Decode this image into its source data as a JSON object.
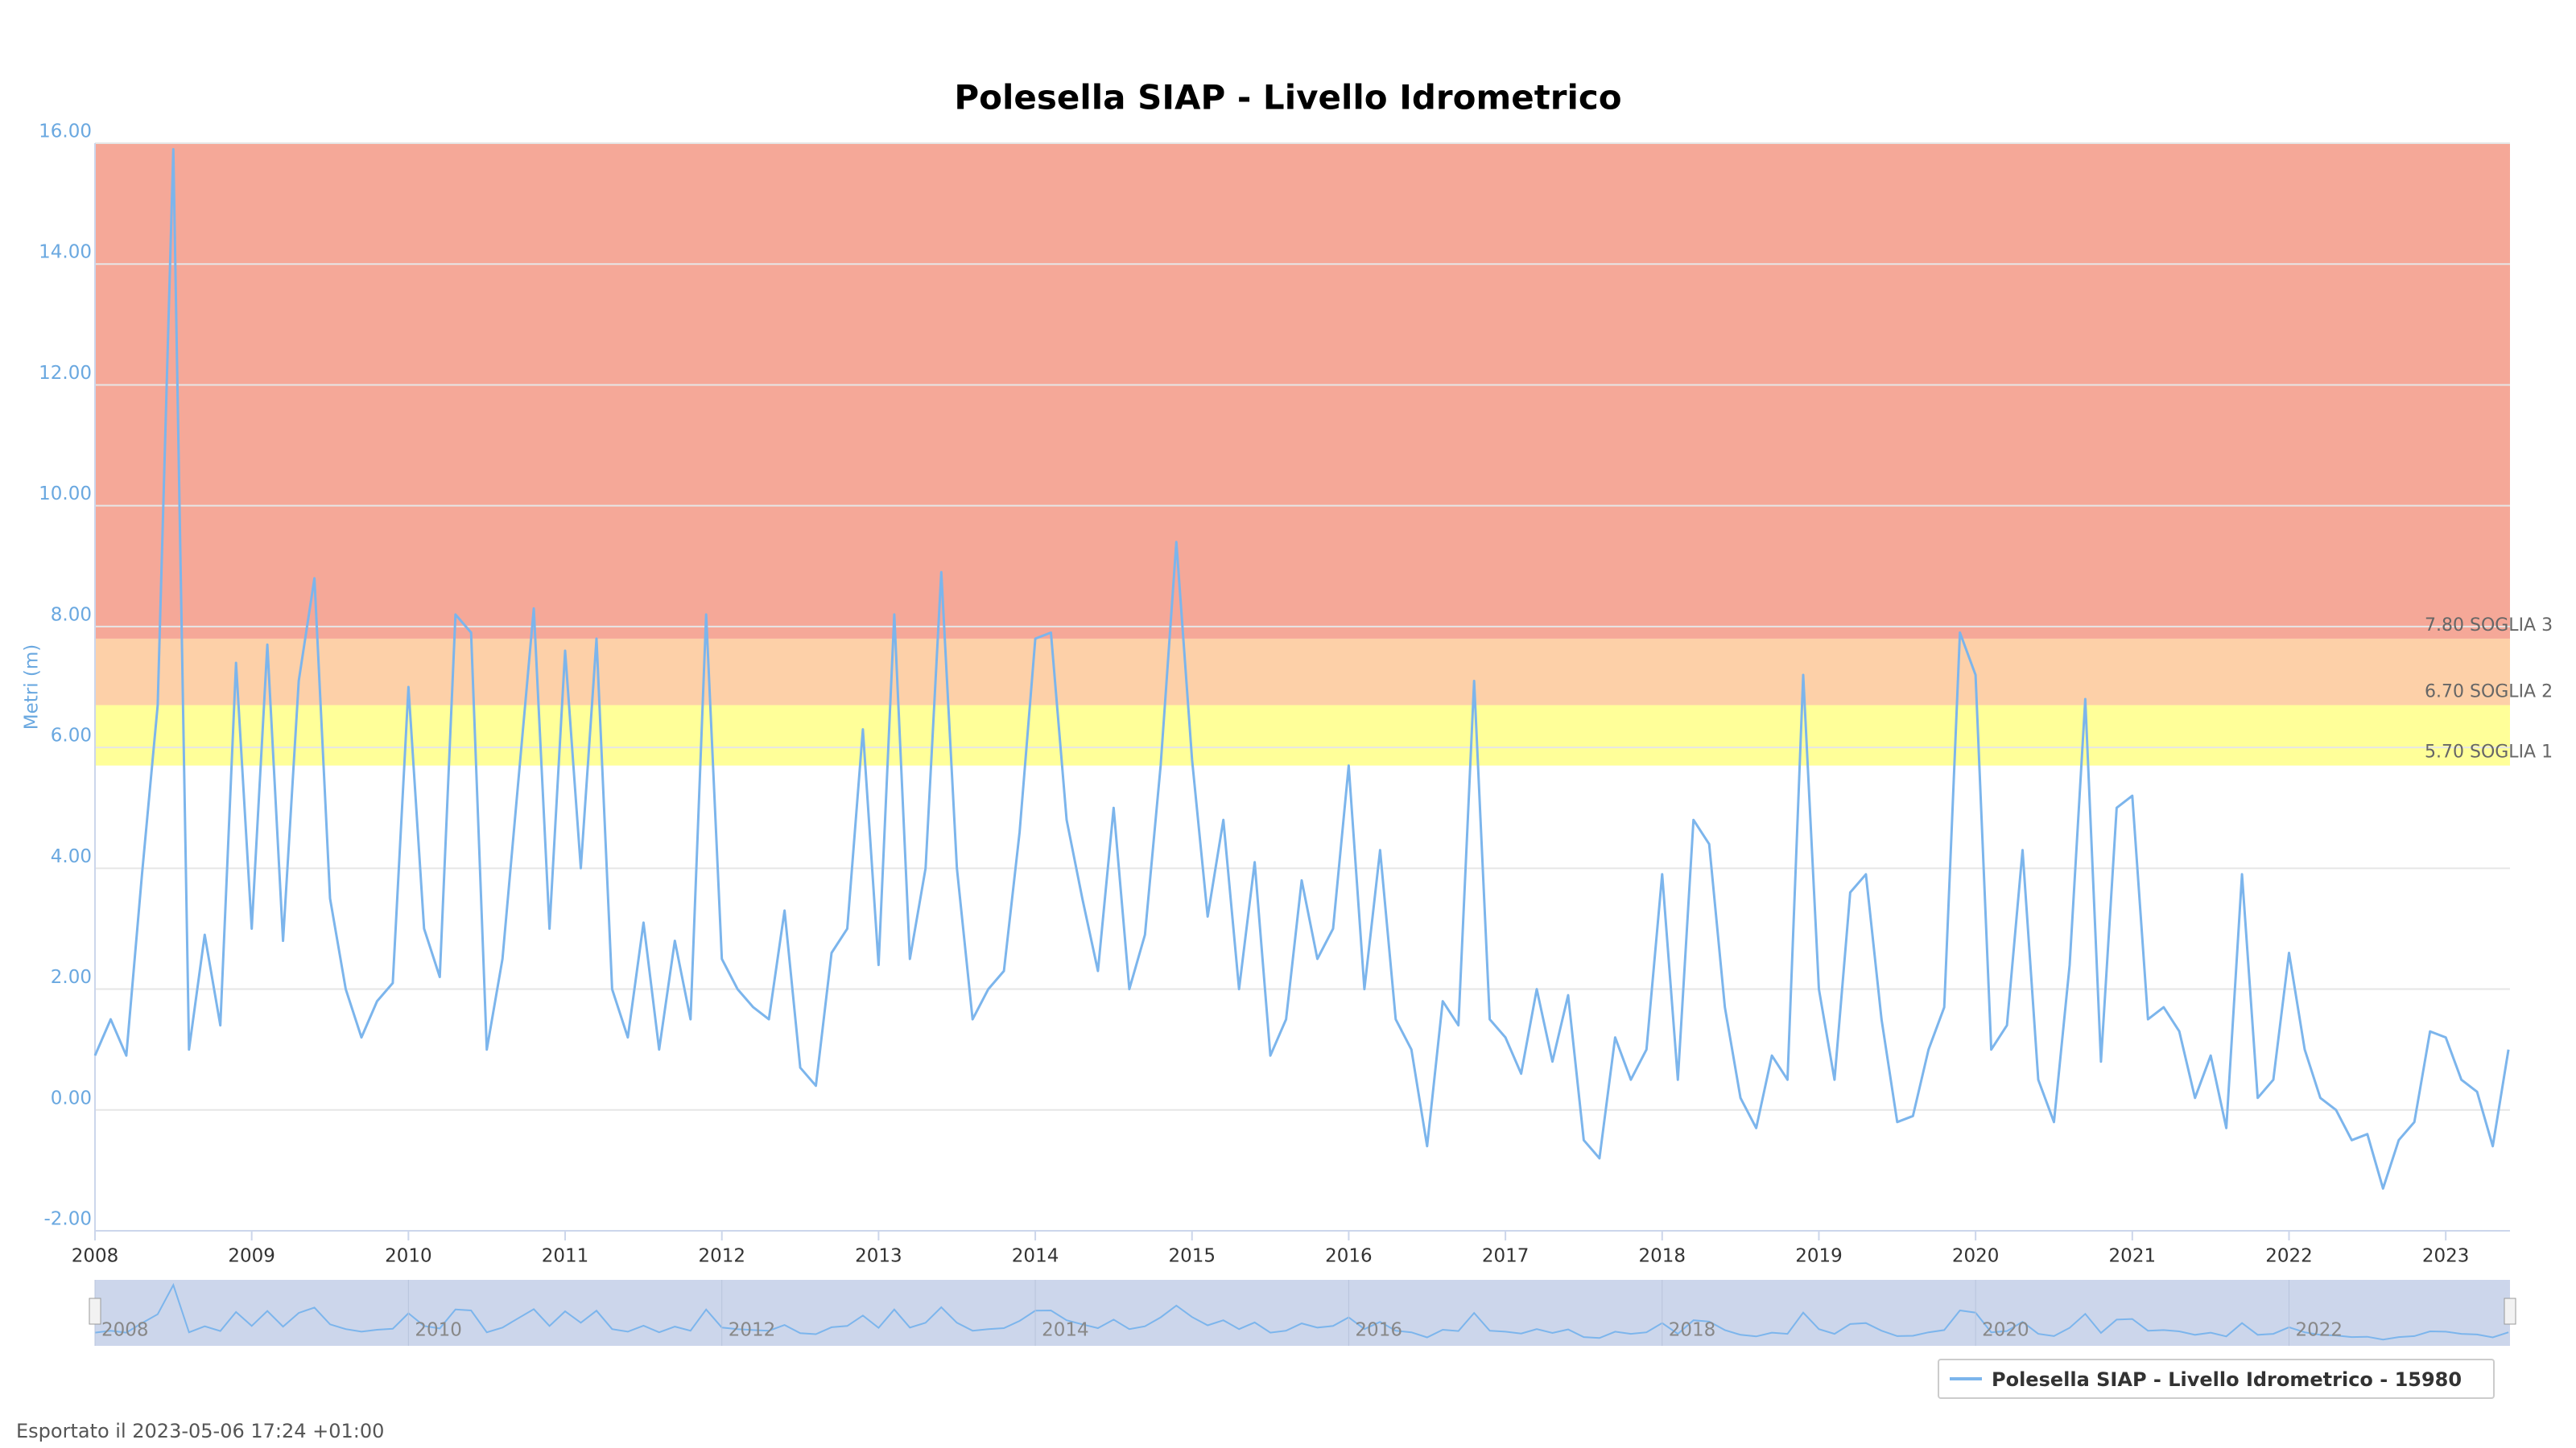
{
  "chart_data": {
    "type": "line",
    "title": "Polesella SIAP - Livello Idrometrico",
    "y_axis_title": "Metri (m)",
    "footer": "Esportato il 2023-05-06 17:24 +01:00",
    "xlim": [
      2008,
      2023.41
    ],
    "xticks": [
      2008,
      2009,
      2010,
      2011,
      2012,
      2013,
      2014,
      2015,
      2016,
      2017,
      2018,
      2019,
      2020,
      2021,
      2022,
      2023
    ],
    "navigator_ticks": [
      2008,
      2010,
      2012,
      2014,
      2016,
      2018,
      2020,
      2022
    ],
    "ylim": [
      -2,
      16
    ],
    "yticks": [
      {
        "value": -2,
        "label": "-2.00"
      },
      {
        "value": 0,
        "label": "0.00"
      },
      {
        "value": 2,
        "label": "2.00"
      },
      {
        "value": 4,
        "label": "4.00"
      },
      {
        "value": 6,
        "label": "6.00"
      },
      {
        "value": 8,
        "label": "8.00"
      },
      {
        "value": 10,
        "label": "10.00"
      },
      {
        "value": 12,
        "label": "12.00"
      },
      {
        "value": 14,
        "label": "14.00"
      },
      {
        "value": 16,
        "label": "16.00"
      }
    ],
    "grid": true,
    "thresholds": [
      {
        "value": 5.7,
        "label": "5.70 SOGLIA 1",
        "color": "#ffff99"
      },
      {
        "value": 6.7,
        "label": "6.70 SOGLIA 2",
        "color": "#fdd0a8"
      },
      {
        "value": 7.8,
        "label": "7.80 SOGLIA 3",
        "color": "#f5a898"
      }
    ],
    "x": [
      2008.0,
      2008.1,
      2008.2,
      2008.3,
      2008.4,
      2008.5,
      2008.6,
      2008.7,
      2008.8,
      2008.9,
      2009.0,
      2009.1,
      2009.2,
      2009.3,
      2009.4,
      2009.5,
      2009.6,
      2009.7,
      2009.8,
      2009.9,
      2010.0,
      2010.1,
      2010.2,
      2010.3,
      2010.4,
      2010.5,
      2010.6,
      2010.7,
      2010.8,
      2010.9,
      2011.0,
      2011.1,
      2011.2,
      2011.3,
      2011.4,
      2011.5,
      2011.6,
      2011.7,
      2011.8,
      2011.9,
      2012.0,
      2012.1,
      2012.2,
      2012.3,
      2012.4,
      2012.5,
      2012.6,
      2012.7,
      2012.8,
      2012.9,
      2013.0,
      2013.1,
      2013.2,
      2013.3,
      2013.4,
      2013.5,
      2013.6,
      2013.7,
      2013.8,
      2013.9,
      2014.0,
      2014.1,
      2014.2,
      2014.3,
      2014.4,
      2014.5,
      2014.6,
      2014.7,
      2014.8,
      2014.9,
      2015.0,
      2015.1,
      2015.2,
      2015.3,
      2015.4,
      2015.5,
      2015.6,
      2015.7,
      2015.8,
      2015.9,
      2016.0,
      2016.1,
      2016.2,
      2016.3,
      2016.4,
      2016.5,
      2016.6,
      2016.7,
      2016.8,
      2016.9,
      2017.0,
      2017.1,
      2017.2,
      2017.3,
      2017.4,
      2017.5,
      2017.6,
      2017.7,
      2017.8,
      2017.9,
      2018.0,
      2018.1,
      2018.2,
      2018.3,
      2018.4,
      2018.5,
      2018.6,
      2018.7,
      2018.8,
      2018.9,
      2019.0,
      2019.1,
      2019.2,
      2019.3,
      2019.4,
      2019.5,
      2019.6,
      2019.7,
      2019.8,
      2019.9,
      2020.0,
      2020.1,
      2020.2,
      2020.3,
      2020.4,
      2020.5,
      2020.6,
      2020.7,
      2020.8,
      2020.9,
      2021.0,
      2021.1,
      2021.2,
      2021.3,
      2021.4,
      2021.5,
      2021.6,
      2021.7,
      2021.8,
      2021.9,
      2022.0,
      2022.1,
      2022.2,
      2022.3,
      2022.4,
      2022.5,
      2022.6,
      2022.7,
      2022.8,
      2022.9,
      2023.0,
      2023.1,
      2023.2,
      2023.3,
      2023.4
    ],
    "series": [
      {
        "name": "Polesella SIAP - Livello Idrometrico - 15980",
        "color": "#7cb5ec",
        "values": [
          0.9,
          1.5,
          0.9,
          3.9,
          6.7,
          15.9,
          1.0,
          2.9,
          1.4,
          7.4,
          3.0,
          7.7,
          2.8,
          7.1,
          8.8,
          3.5,
          2.0,
          1.2,
          1.8,
          2.1,
          7.0,
          3.0,
          2.2,
          8.2,
          7.9,
          1.0,
          2.5,
          5.4,
          8.3,
          3.0,
          7.6,
          4.0,
          7.8,
          2.0,
          1.2,
          3.1,
          1.0,
          2.8,
          1.5,
          8.2,
          2.5,
          2.0,
          1.7,
          1.5,
          3.3,
          0.7,
          0.4,
          2.6,
          3.0,
          6.3,
          2.4,
          8.2,
          2.5,
          4.0,
          8.9,
          4.0,
          1.5,
          2.0,
          2.3,
          4.6,
          7.8,
          7.9,
          4.8,
          3.5,
          2.3,
          5.0,
          2.0,
          2.9,
          5.7,
          9.4,
          5.8,
          3.2,
          4.8,
          2.0,
          4.1,
          0.9,
          1.5,
          3.8,
          2.5,
          3.0,
          5.7,
          2.0,
          4.3,
          1.5,
          1.0,
          -0.6,
          1.8,
          1.4,
          7.1,
          1.5,
          1.2,
          0.6,
          2.0,
          0.8,
          1.9,
          -0.5,
          -0.8,
          1.2,
          0.5,
          1.0,
          3.9,
          0.5,
          4.8,
          4.4,
          1.7,
          0.2,
          -0.3,
          0.9,
          0.5,
          7.2,
          2.0,
          0.5,
          3.6,
          3.9,
          1.5,
          -0.2,
          -0.1,
          1.0,
          1.7,
          7.9,
          7.2,
          1.0,
          1.4,
          4.3,
          0.5,
          -0.2,
          2.4,
          6.8,
          0.8,
          5.0,
          5.2,
          1.5,
          1.7,
          1.3,
          0.2,
          0.9,
          -0.3,
          3.9,
          0.2,
          0.5,
          2.6,
          1.0,
          0.2,
          0.0,
          -0.5,
          -0.4,
          -1.3,
          -0.5,
          -0.2,
          1.3,
          1.2,
          0.5,
          0.3,
          -0.6,
          1.0
        ]
      }
    ]
  }
}
